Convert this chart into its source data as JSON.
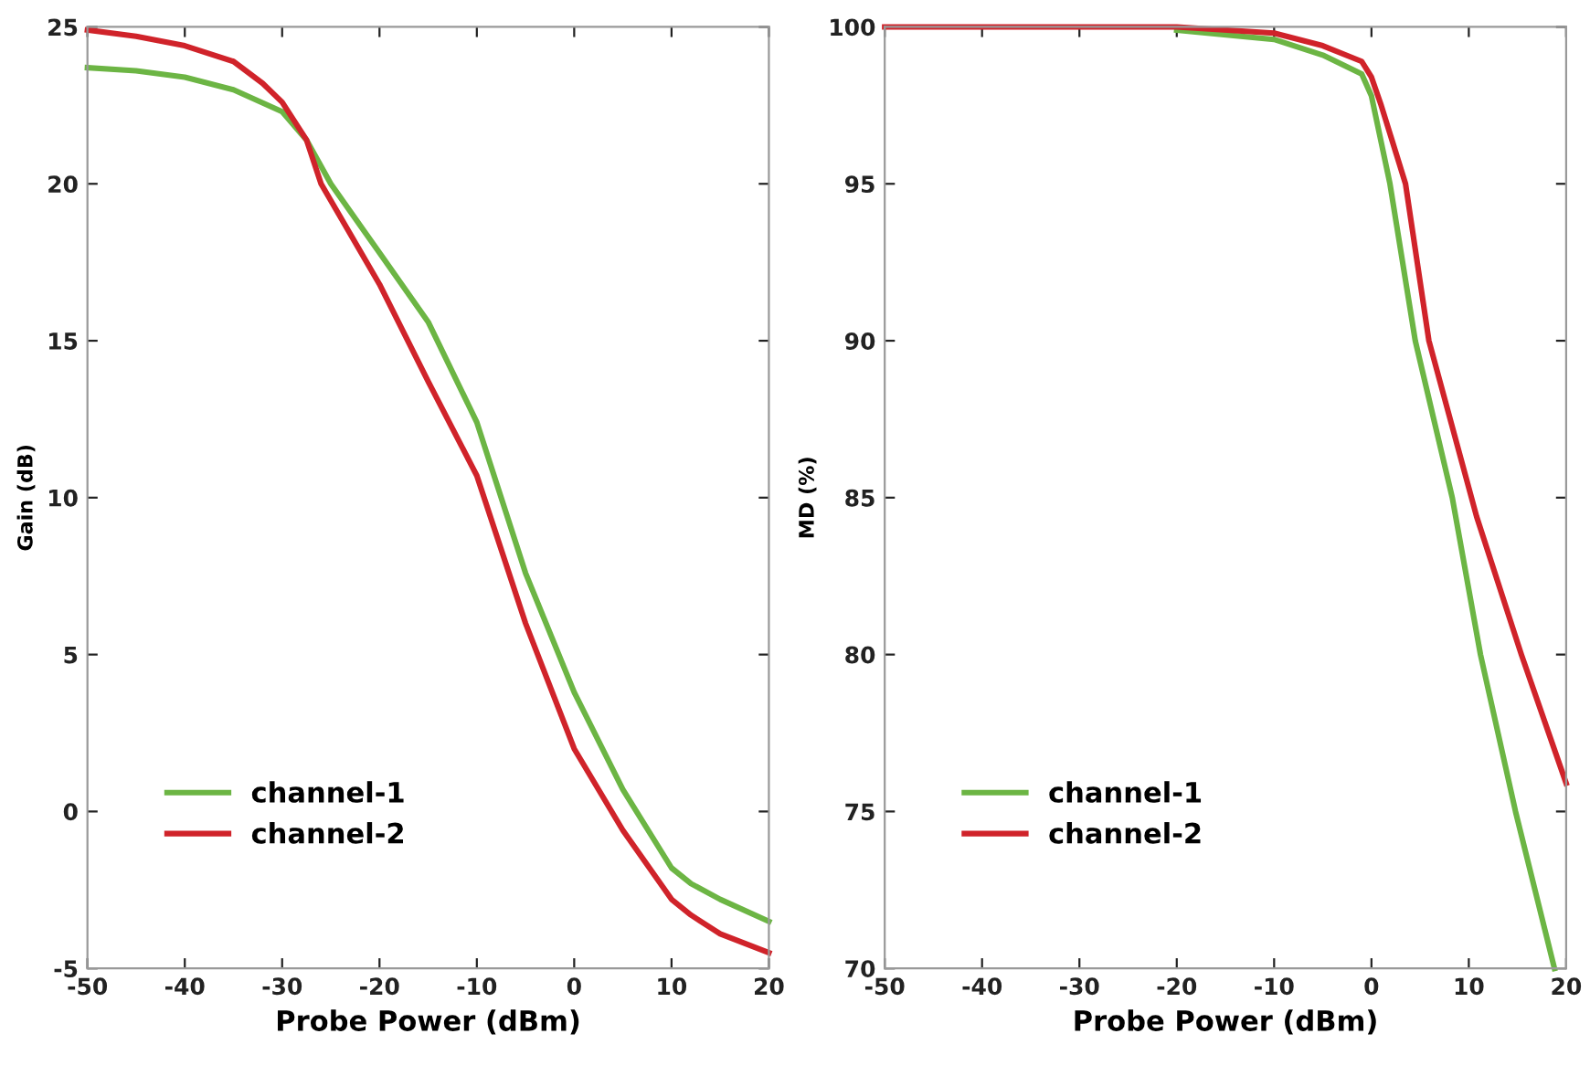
{
  "chart_data": [
    {
      "type": "line",
      "xlabel": "Probe Power (dBm)",
      "ylabel": "Gain (dB)",
      "xlim": [
        -50,
        20
      ],
      "ylim": [
        -5,
        25
      ],
      "xticks": [
        -50,
        -40,
        -30,
        -20,
        -10,
        0,
        10,
        20
      ],
      "yticks": [
        -5,
        0,
        5,
        10,
        15,
        20,
        25
      ],
      "grid": false,
      "legend": "bottom left",
      "marker": "none",
      "line_style": "solid",
      "series": [
        {
          "name": "channel-1",
          "color": "#6cb544",
          "x": [
            -50,
            -45,
            -40,
            -35,
            -30,
            -27.5,
            -25,
            -20,
            -15,
            -10,
            -5,
            0,
            5,
            10,
            12,
            15,
            20
          ],
          "values": [
            23.7,
            23.6,
            23.4,
            23.0,
            22.3,
            21.4,
            20.0,
            17.8,
            15.6,
            12.4,
            7.6,
            3.8,
            0.7,
            -1.8,
            -2.3,
            -2.8,
            -3.5
          ]
        },
        {
          "name": "channel-2",
          "color": "#d0232a",
          "x": [
            -50,
            -45,
            -40,
            -35,
            -32,
            -30,
            -27.5,
            -26,
            -20,
            -15,
            -10,
            -5,
            0,
            5,
            10,
            12,
            15,
            20
          ],
          "values": [
            24.9,
            24.7,
            24.4,
            23.9,
            23.2,
            22.6,
            21.4,
            20.0,
            16.8,
            13.7,
            10.7,
            6.0,
            2.0,
            -0.6,
            -2.8,
            -3.3,
            -3.9,
            -4.5
          ]
        }
      ]
    },
    {
      "type": "line",
      "xlabel": "Probe Power (dBm)",
      "ylabel": "MD (%)",
      "xlim": [
        -50,
        20
      ],
      "ylim": [
        70,
        100
      ],
      "xticks": [
        -50,
        -40,
        -30,
        -20,
        -10,
        0,
        10,
        20
      ],
      "yticks": [
        70,
        75,
        80,
        85,
        90,
        95,
        100
      ],
      "grid": false,
      "legend": "bottom left",
      "marker": "none",
      "line_style": "solid",
      "series": [
        {
          "name": "channel-1",
          "color": "#6cb544",
          "x": [
            -20,
            -10,
            -5,
            -1,
            0,
            1.9,
            4.5,
            8.3,
            11.2,
            14.8,
            18.8
          ],
          "values": [
            99.9,
            99.6,
            99.1,
            98.5,
            97.8,
            95,
            90,
            85,
            80,
            75,
            70
          ]
        },
        {
          "name": "channel-2",
          "color": "#d0232a",
          "x": [
            -50,
            -40,
            -30,
            -20,
            -10,
            -5,
            -1,
            0,
            1,
            3.5,
            5.9,
            10.8,
            15.4,
            20
          ],
          "values": [
            100.0,
            100.0,
            100.0,
            100.0,
            99.8,
            99.4,
            98.9,
            98.4,
            97.5,
            95,
            90,
            84.4,
            80,
            75.9
          ]
        }
      ]
    }
  ]
}
